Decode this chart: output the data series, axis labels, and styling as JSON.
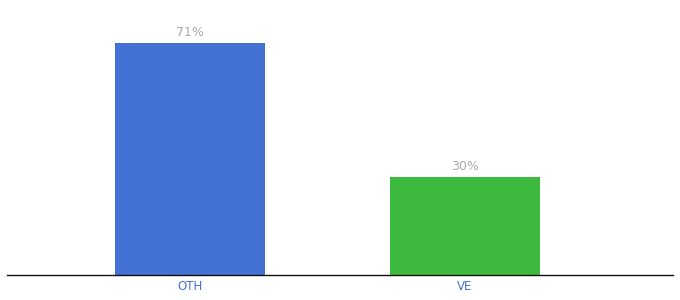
{
  "categories": [
    "OTH",
    "VE"
  ],
  "values": [
    71,
    30
  ],
  "bar_colors": [
    "#4472d4",
    "#3dba3d"
  ],
  "value_labels": [
    "71%",
    "30%"
  ],
  "ylim": [
    0,
    82
  ],
  "bar_width": 0.18,
  "x_positions": [
    0.32,
    0.65
  ],
  "xlim": [
    0.1,
    0.9
  ],
  "background_color": "#ffffff",
  "label_color": "#aaaaaa",
  "label_fontsize": 9,
  "tick_fontsize": 8.5,
  "tick_color": "#4472d4"
}
